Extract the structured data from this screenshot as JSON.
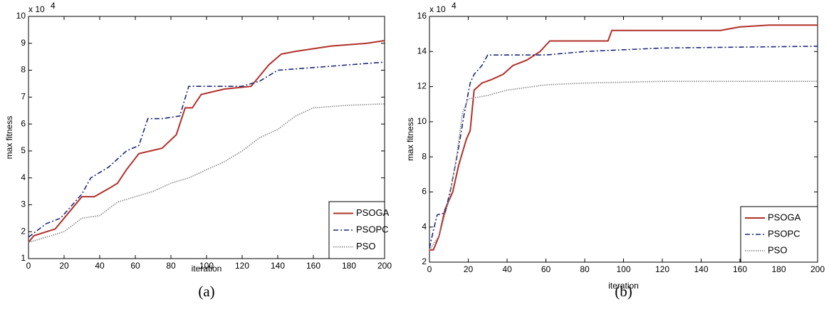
{
  "chart_data": [
    {
      "type": "line",
      "caption": "(a)",
      "xlabel": "iteration",
      "ylabel": "max fitness",
      "y_multiplier": "x 10",
      "y_multiplier_exponent": "4",
      "xlim": [
        0,
        200
      ],
      "xticks": [
        0,
        20,
        40,
        60,
        80,
        100,
        120,
        140,
        160,
        180,
        200
      ],
      "ylim": [
        1,
        10
      ],
      "yticks": [
        1,
        2,
        3,
        4,
        5,
        6,
        7,
        8,
        9,
        10
      ],
      "legend": "lower right",
      "series": [
        {
          "name": "PSOGA",
          "color": "#b0302a",
          "dash": "solid",
          "x": [
            0,
            3,
            15,
            20,
            25,
            30,
            37,
            45,
            50,
            55,
            62,
            75,
            83,
            88,
            92,
            97,
            110,
            125,
            130,
            135,
            142,
            150,
            170,
            190,
            200
          ],
          "values": [
            1.6,
            1.85,
            2.1,
            2.5,
            2.9,
            3.3,
            3.3,
            3.6,
            3.8,
            4.3,
            4.9,
            5.1,
            5.6,
            6.6,
            6.6,
            7.1,
            7.3,
            7.4,
            7.8,
            8.2,
            8.6,
            8.7,
            8.9,
            9.0,
            9.1
          ]
        },
        {
          "name": "PSOPC",
          "color": "#1c2a78",
          "dash": "dashdot",
          "x": [
            0,
            10,
            18,
            22,
            30,
            35,
            45,
            55,
            62,
            67,
            75,
            85,
            90,
            120,
            130,
            140,
            160,
            180,
            200
          ],
          "values": [
            1.8,
            2.3,
            2.5,
            2.8,
            3.4,
            4.0,
            4.4,
            5.0,
            5.2,
            6.2,
            6.2,
            6.3,
            7.4,
            7.4,
            7.6,
            8.0,
            8.1,
            8.2,
            8.3
          ]
        },
        {
          "name": "PSO",
          "color": "#8a8a8a",
          "dash": "dotted",
          "x": [
            0,
            10,
            20,
            30,
            40,
            50,
            60,
            70,
            80,
            90,
            100,
            110,
            120,
            130,
            140,
            150,
            160,
            180,
            200
          ],
          "values": [
            1.6,
            1.8,
            2.0,
            2.5,
            2.6,
            3.1,
            3.3,
            3.5,
            3.8,
            4.0,
            4.3,
            4.6,
            5.0,
            5.5,
            5.8,
            6.3,
            6.6,
            6.7,
            6.75
          ]
        }
      ]
    },
    {
      "type": "line",
      "caption": "(b)",
      "xlabel": "iteration",
      "ylabel": "max fitness",
      "y_multiplier": "x 10",
      "y_multiplier_exponent": "4",
      "xlim": [
        0,
        200
      ],
      "xticks": [
        0,
        20,
        40,
        60,
        80,
        100,
        120,
        140,
        160,
        180,
        200
      ],
      "ylim": [
        2,
        16
      ],
      "yticks": [
        2,
        4,
        6,
        8,
        10,
        12,
        14,
        16
      ],
      "legend": "lower right",
      "series": [
        {
          "name": "PSOGA",
          "color": "#b0302a",
          "dash": "solid",
          "x": [
            0,
            2,
            5,
            8,
            12,
            15,
            19,
            21,
            23,
            27,
            32,
            38,
            43,
            50,
            57,
            62,
            92,
            94,
            150,
            160,
            175,
            200
          ],
          "values": [
            2.7,
            2.7,
            3.5,
            5,
            6,
            7.5,
            9,
            9.5,
            11.8,
            12.2,
            12.4,
            12.7,
            13.2,
            13.5,
            14,
            14.6,
            14.6,
            15.2,
            15.2,
            15.4,
            15.5,
            15.5
          ]
        },
        {
          "name": "PSOPC",
          "color": "#1c2a78",
          "dash": "dashdot",
          "x": [
            0,
            2,
            4,
            8,
            11,
            15,
            18,
            21,
            23,
            27,
            30,
            60,
            80,
            120,
            200
          ],
          "values": [
            2.8,
            3.8,
            4.7,
            4.8,
            6.2,
            8.5,
            10.5,
            12.2,
            12.7,
            13.2,
            13.8,
            13.8,
            14.0,
            14.2,
            14.3
          ]
        },
        {
          "name": "PSO",
          "color": "#8a8a8a",
          "dash": "dotted",
          "x": [
            0,
            5,
            10,
            14,
            17,
            20,
            30,
            40,
            60,
            80,
            120,
            200
          ],
          "values": [
            2.7,
            3.5,
            5.5,
            8,
            10.5,
            11.3,
            11.5,
            11.8,
            12.1,
            12.2,
            12.3,
            12.3
          ]
        }
      ]
    }
  ]
}
